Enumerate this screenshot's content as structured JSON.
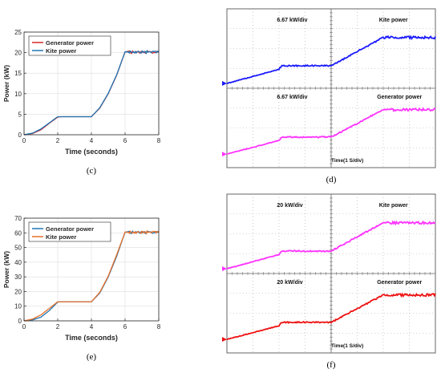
{
  "chart_data": [
    {
      "type": "line",
      "panel": "(c)",
      "xlabel": "Time (seconds)",
      "ylabel": "Power (kW)",
      "xlim": [
        0,
        8
      ],
      "ylim": [
        0,
        25
      ],
      "xticks": [
        "0",
        "2",
        "4",
        "6",
        "8"
      ],
      "yticks": [
        "0",
        "5",
        "10",
        "15",
        "20",
        "25"
      ],
      "grid": true,
      "legend_position": "top-left",
      "series": [
        {
          "name": "Generator power",
          "color": "#d62728",
          "points": [
            [
              0,
              0
            ],
            [
              0.5,
              0.3
            ],
            [
              1,
              1.2
            ],
            [
              1.5,
              2.8
            ],
            [
              2,
              4.3
            ],
            [
              2.2,
              4.4
            ],
            [
              4,
              4.4
            ],
            [
              4.5,
              6.5
            ],
            [
              5,
              10.0
            ],
            [
              5.5,
              14.5
            ],
            [
              6,
              20.2
            ],
            [
              6.2,
              20.1
            ],
            [
              8,
              20.1
            ]
          ]
        },
        {
          "name": "Kite power",
          "color": "#1f77b4",
          "points": [
            [
              0,
              0
            ],
            [
              0.5,
              0.4
            ],
            [
              1,
              1.4
            ],
            [
              1.5,
              2.9
            ],
            [
              2,
              4.4
            ],
            [
              4,
              4.4
            ],
            [
              4.5,
              6.6
            ],
            [
              5,
              10.1
            ],
            [
              5.5,
              14.6
            ],
            [
              6,
              20.2
            ],
            [
              8,
              20.1
            ]
          ]
        }
      ]
    },
    {
      "type": "line",
      "panel": "(d)",
      "scope": true,
      "trace_labels": [
        "6.67 kW/div",
        "Kite power",
        "6.67 kW/div",
        "Generator power"
      ],
      "time_label": "Time(1 S/div)",
      "grid": true,
      "series": [
        {
          "name": "Kite power",
          "color": "#1a1aff",
          "points": [
            [
              0,
              0
            ],
            [
              2,
              0.04
            ],
            [
              2.1,
              0.05
            ],
            [
              4,
              0.05
            ],
            [
              6,
              0.13
            ],
            [
              8,
              0.13
            ]
          ]
        },
        {
          "name": "Generator power",
          "color": "#ff33ff",
          "points": [
            [
              0,
              0
            ],
            [
              2,
              0.04
            ],
            [
              2.1,
              0.05
            ],
            [
              4,
              0.05
            ],
            [
              6,
              0.13
            ],
            [
              8,
              0.13
            ]
          ]
        }
      ]
    },
    {
      "type": "line",
      "panel": "(e)",
      "xlabel": "Time (seconds)",
      "ylabel": "Power (kW)",
      "xlim": [
        0,
        8
      ],
      "ylim": [
        0,
        70
      ],
      "xticks": [
        "0",
        "2",
        "4",
        "6",
        "8"
      ],
      "yticks": [
        "0",
        "10",
        "20",
        "30",
        "40",
        "50",
        "60",
        "70"
      ],
      "grid": true,
      "legend_position": "top-left",
      "series": [
        {
          "name": "Generator power",
          "color": "#1f77b4",
          "points": [
            [
              0,
              0
            ],
            [
              0.5,
              0.6
            ],
            [
              1,
              2.5
            ],
            [
              1.5,
              7.0
            ],
            [
              2,
              12.8
            ],
            [
              2.2,
              13.0
            ],
            [
              4,
              13.0
            ],
            [
              4.5,
              19.0
            ],
            [
              5,
              30.0
            ],
            [
              5.5,
              44.0
            ],
            [
              6,
              60.5
            ],
            [
              6.2,
              60.3
            ],
            [
              8,
              60.3
            ]
          ]
        },
        {
          "name": "Kite power",
          "color": "#e8702a",
          "points": [
            [
              0,
              0
            ],
            [
              0.5,
              1.2
            ],
            [
              1,
              4.0
            ],
            [
              1.5,
              8.5
            ],
            [
              2,
              13.0
            ],
            [
              4,
              13.0
            ],
            [
              4.5,
              19.5
            ],
            [
              5,
              30.5
            ],
            [
              5.5,
              45.0
            ],
            [
              6,
              60.5
            ],
            [
              8,
              60.3
            ]
          ]
        }
      ]
    },
    {
      "type": "line",
      "panel": "(f)",
      "scope": true,
      "trace_labels": [
        "20 kW/div",
        "Kite power",
        "20 kW/div",
        "Generator power"
      ],
      "time_label": "Time(1 S/div)",
      "grid": true,
      "series": [
        {
          "name": "Kite power",
          "color": "#ff33ff",
          "points": [
            [
              0,
              0
            ],
            [
              2,
              0.04
            ],
            [
              2.1,
              0.05
            ],
            [
              4,
              0.05
            ],
            [
              6,
              0.13
            ],
            [
              8,
              0.13
            ]
          ]
        },
        {
          "name": "Generator power",
          "color": "#ee1111",
          "points": [
            [
              0,
              0
            ],
            [
              2,
              0.04
            ],
            [
              2.1,
              0.05
            ],
            [
              4,
              0.05
            ],
            [
              6,
              0.13
            ],
            [
              8,
              0.13
            ]
          ]
        }
      ]
    }
  ]
}
